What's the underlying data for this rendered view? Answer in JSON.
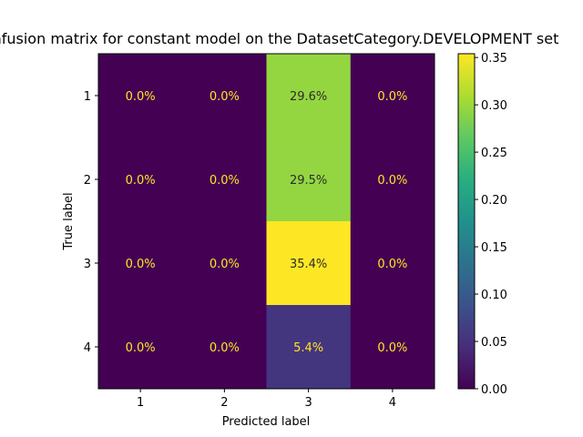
{
  "chart_data": {
    "type": "heatmap",
    "title": "Confusion matrix for constant model on the DatasetCategory.DEVELOPMENT set",
    "xlabel": "Predicted label",
    "ylabel": "True label",
    "x_categories": [
      "1",
      "2",
      "3",
      "4"
    ],
    "y_categories": [
      "1",
      "2",
      "3",
      "4"
    ],
    "values": [
      [
        0.0,
        0.0,
        0.296,
        0.0
      ],
      [
        0.0,
        0.0,
        0.295,
        0.0
      ],
      [
        0.0,
        0.0,
        0.354,
        0.0
      ],
      [
        0.0,
        0.0,
        0.054,
        0.0
      ]
    ],
    "cell_labels": [
      [
        "0.0%",
        "0.0%",
        "29.6%",
        "0.0%"
      ],
      [
        "0.0%",
        "0.0%",
        "29.5%",
        "0.0%"
      ],
      [
        "0.0%",
        "0.0%",
        "35.4%",
        "0.0%"
      ],
      [
        "0.0%",
        "0.0%",
        "5.4%",
        "0.0%"
      ]
    ],
    "colormap": "viridis",
    "colorbar": {
      "range": [
        0.0,
        0.354
      ],
      "ticks": [
        0.0,
        0.05,
        0.1,
        0.15,
        0.2,
        0.25,
        0.3,
        0.35
      ],
      "tick_labels": [
        "0.00",
        "0.05",
        "0.10",
        "0.15",
        "0.20",
        "0.25",
        "0.30",
        "0.35"
      ]
    },
    "grid": false
  }
}
